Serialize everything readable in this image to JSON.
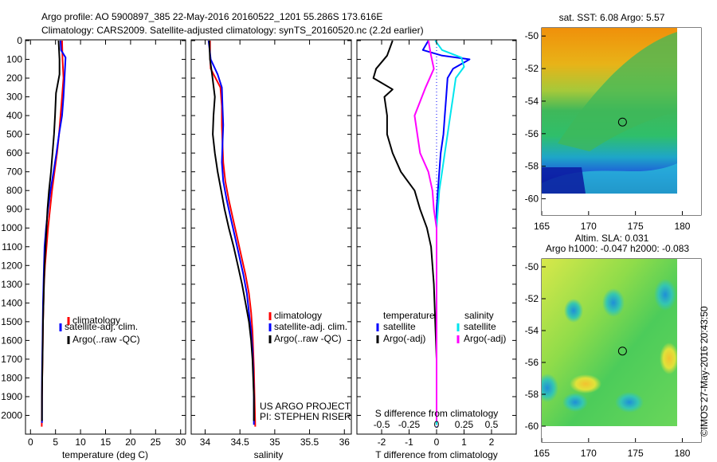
{
  "header": {
    "line1": "Argo profile: AO 5900897_385 22-May-2016 20160522_1201 55.286S 173.616E",
    "line2": "Climatology: CARS2009. Satellite-adjusted climatology: synTS_20160520.nc (2.2d earlier)"
  },
  "credit": {
    "project": "US ARGO PROJECT",
    "pi": "PI: STEPHEN RISER",
    "imos": "©IMOS 27-May-2016 20:43:50"
  },
  "colors": {
    "climatology": "#ff0000",
    "satellite": "#0000ff",
    "argo": "#000000",
    "sat_salinity": "#00e5ee",
    "argo_salinity": "#ff00ff"
  },
  "chart_data": [
    {
      "type": "line",
      "id": "temperature",
      "xlabel": "temperature (deg C)",
      "ylabel": "",
      "xlim": [
        -1,
        31
      ],
      "ylim": [
        2100,
        0
      ],
      "xticks": [
        0,
        5,
        10,
        15,
        20,
        25,
        30
      ],
      "xticklabels": [
        "0",
        "5",
        "10",
        "15",
        "20",
        "25",
        "30"
      ],
      "yticks": [
        0,
        100,
        200,
        300,
        400,
        500,
        600,
        700,
        800,
        900,
        1000,
        1100,
        1200,
        1300,
        1400,
        1500,
        1600,
        1700,
        1800,
        1900,
        2000
      ],
      "yticklabels": [
        "0",
        "100",
        "200",
        "300",
        "400",
        "500",
        "600",
        "700",
        "800",
        "900",
        "1000",
        "1100",
        "1200",
        "1300",
        "1400",
        "1500",
        "1600",
        "1700",
        "1800",
        "1900",
        "2000"
      ],
      "legend": [
        "climatology",
        "satellite-adj. clim.",
        "Argo(..raw -QC)"
      ],
      "series": [
        {
          "name": "climatology",
          "color": "#ff0000",
          "x": [
            6.3,
            6.4,
            6.6,
            6.3,
            6.0,
            5.7,
            5.3,
            4.8,
            4.3,
            3.9,
            3.5,
            3.2,
            2.9,
            2.7,
            2.6,
            2.5,
            2.45,
            2.4,
            2.35,
            2.3,
            2.25
          ],
          "y": [
            0,
            100,
            200,
            300,
            400,
            500,
            600,
            700,
            800,
            900,
            1000,
            1100,
            1200,
            1300,
            1400,
            1500,
            1600,
            1700,
            1800,
            1900,
            2060
          ]
        },
        {
          "name": "satellite-adj. clim.",
          "color": "#0000ff",
          "x": [
            6.0,
            6.1,
            7.0,
            6.8,
            6.6,
            6.3,
            5.7,
            5.2,
            4.6,
            4.0,
            3.5,
            3.1,
            2.8,
            2.7,
            2.6,
            2.5,
            2.45,
            2.4,
            2.35,
            2.3,
            2.3
          ],
          "y": [
            0,
            50,
            90,
            200,
            300,
            400,
            500,
            600,
            700,
            800,
            900,
            1000,
            1100,
            1200,
            1300,
            1400,
            1500,
            1600,
            1700,
            1800,
            2040
          ]
        },
        {
          "name": "Argo(..raw -QC)",
          "color": "#000000",
          "x": [
            5.6,
            5.8,
            5.8,
            5.1,
            4.9,
            4.7,
            4.4,
            4.1,
            3.7,
            3.4,
            3.2,
            3.0,
            2.8,
            2.7,
            2.6,
            2.5,
            2.45,
            2.4,
            2.35,
            2.3,
            2.3
          ],
          "y": [
            0,
            100,
            180,
            280,
            400,
            500,
            600,
            700,
            800,
            900,
            1000,
            1100,
            1200,
            1300,
            1400,
            1500,
            1600,
            1700,
            1800,
            1900,
            2030
          ]
        }
      ]
    },
    {
      "type": "line",
      "id": "salinity",
      "xlabel": "salinity",
      "ylabel": "",
      "xlim": [
        33.8,
        36.1
      ],
      "ylim": [
        2100,
        0
      ],
      "xticks": [
        34,
        34.5,
        35,
        35.5,
        36
      ],
      "xticklabels": [
        "34",
        "34.5",
        "35",
        "35.5",
        "36"
      ],
      "legend": [
        "climatology",
        "satellite-adj. clim.",
        "Argo(..raw -QC)"
      ],
      "series": [
        {
          "name": "climatology",
          "color": "#ff0000",
          "x": [
            34.07,
            34.07,
            34.08,
            34.22,
            34.24,
            34.24,
            34.25,
            34.26,
            34.29,
            34.34,
            34.4,
            34.46,
            34.52,
            34.58,
            34.63,
            34.66,
            34.68,
            34.69,
            34.7,
            34.71,
            34.72
          ],
          "y": [
            0,
            80,
            150,
            250,
            350,
            450,
            550,
            650,
            750,
            850,
            950,
            1050,
            1150,
            1250,
            1350,
            1450,
            1550,
            1650,
            1750,
            1900,
            2060
          ]
        },
        {
          "name": "satellite-adj. clim.",
          "color": "#0000ff",
          "x": [
            34.05,
            34.08,
            34.18,
            34.24,
            34.25,
            34.26,
            34.25,
            34.24,
            34.26,
            34.31,
            34.37,
            34.43,
            34.49,
            34.55,
            34.6,
            34.63,
            34.66,
            34.68,
            34.69,
            34.7,
            34.7
          ],
          "y": [
            0,
            100,
            180,
            250,
            350,
            450,
            550,
            650,
            750,
            850,
            950,
            1050,
            1150,
            1250,
            1350,
            1450,
            1550,
            1650,
            1750,
            1900,
            2050
          ]
        },
        {
          "name": "Argo(..raw -QC)",
          "color": "#000000",
          "x": [
            34.06,
            34.07,
            34.1,
            34.14,
            34.12,
            34.11,
            34.14,
            34.18,
            34.23,
            34.28,
            34.34,
            34.41,
            34.47,
            34.53,
            34.58,
            34.63,
            34.66,
            34.68,
            34.69,
            34.7,
            34.7
          ],
          "y": [
            0,
            100,
            180,
            300,
            400,
            500,
            600,
            700,
            800,
            900,
            1000,
            1100,
            1200,
            1300,
            1400,
            1500,
            1600,
            1700,
            1800,
            1900,
            2030
          ]
        }
      ]
    },
    {
      "type": "line",
      "id": "difference",
      "xlabel": "T difference from climatology",
      "xlabel_top": "S difference from climatology",
      "xlim": [
        -2.9,
        2.9
      ],
      "ylim": [
        2100,
        0
      ],
      "xticks": [
        -2,
        -1,
        0,
        1,
        2
      ],
      "xticklabels": [
        "-2",
        "-1",
        "0",
        "1",
        "2"
      ],
      "s_axis_ticks": [
        -0.5,
        -0.25,
        0,
        0.25,
        0.5
      ],
      "s_axis_ticklabels": [
        "-0.5",
        "-0.25",
        "0",
        "0.25",
        "0.5"
      ],
      "legend_left_title": "temperature",
      "legend_right_title": "salinity",
      "legend": [
        "satellite",
        "Argo(-adj)",
        "satellite",
        "Argo(-adj)"
      ],
      "series": [
        {
          "name": "satellite",
          "color": "#0000ff",
          "x": [
            -0.3,
            -0.5,
            0.2,
            1.2,
            0.6,
            0.4,
            0.35,
            0.3,
            0.25,
            0.15,
            0.1,
            0.05,
            0.0,
            0.0,
            0.0,
            0.0,
            0.0,
            0.0,
            0.0,
            0.0
          ],
          "y": [
            0,
            50,
            80,
            100,
            150,
            200,
            300,
            400,
            500,
            600,
            700,
            800,
            900,
            1000,
            1200,
            1400,
            1600,
            1800,
            1900,
            2050
          ]
        },
        {
          "name": "Argo(-adj)",
          "color": "#000000",
          "x": [
            -1.6,
            -1.8,
            -2.2,
            -2.3,
            -1.6,
            -1.9,
            -1.8,
            -1.8,
            -1.6,
            -1.3,
            -0.8,
            -0.6,
            -0.35,
            -0.2,
            -0.1,
            -0.05,
            0.0,
            0.0,
            0.0
          ],
          "y": [
            0,
            80,
            150,
            200,
            260,
            300,
            400,
            500,
            600,
            700,
            800,
            900,
            1000,
            1100,
            1300,
            1500,
            1700,
            1900,
            2030
          ]
        },
        {
          "name": "satellite",
          "color": "#00e5ee",
          "x": [
            -0.05,
            0.2,
            0.9,
            1.0,
            0.7,
            0.6,
            0.5,
            0.4,
            0.3,
            0.2,
            0.1,
            0.05,
            0.0,
            0.0,
            0.0,
            0.0,
            0.0,
            0.0
          ],
          "y": [
            0,
            50,
            90,
            140,
            200,
            300,
            400,
            500,
            600,
            700,
            800,
            900,
            1000,
            1200,
            1400,
            1600,
            1800,
            2050
          ]
        },
        {
          "name": "Argo(-adj)",
          "color": "#ff00ff",
          "x": [
            -0.3,
            -0.2,
            -0.1,
            -0.4,
            -0.8,
            -0.6,
            -0.3,
            -0.15,
            -0.1,
            0.0,
            0.0,
            0.0,
            0.0,
            0.0,
            0.0
          ],
          "y": [
            0,
            80,
            150,
            250,
            400,
            600,
            700,
            800,
            900,
            1000,
            1200,
            1400,
            1600,
            1800,
            2030
          ]
        }
      ]
    },
    {
      "type": "heatmap",
      "id": "sst-map",
      "title": "sat. SST: 6.08 Argo: 5.57",
      "xlim": [
        165,
        182
      ],
      "ylim": [
        -61,
        -49.5
      ],
      "xticks": [
        165,
        170,
        175,
        180
      ],
      "xticklabels": [
        "165",
        "170",
        "175",
        "180"
      ],
      "yticks": [
        -50,
        -52,
        -54,
        -56,
        -58,
        -60
      ],
      "yticklabels": [
        "-50",
        "-52",
        "-54",
        "-56",
        "-58",
        "-60"
      ],
      "marker": [
        173.616,
        -55.286
      ]
    },
    {
      "type": "heatmap",
      "id": "sla-map",
      "title": "Altim. SLA: 0.031",
      "subtitle": "Argo h1000: -0.047 h2000: -0.083",
      "xlim": [
        165,
        182
      ],
      "ylim": [
        -61,
        -49.5
      ],
      "xticks": [
        165,
        170,
        175,
        180
      ],
      "xticklabels": [
        "165",
        "170",
        "175",
        "180"
      ],
      "yticks": [
        -50,
        -52,
        -54,
        -56,
        -58,
        -60
      ],
      "yticklabels": [
        "-50",
        "-52",
        "-54",
        "-56",
        "-58",
        "-60"
      ],
      "marker": [
        173.616,
        -55.286
      ]
    }
  ]
}
